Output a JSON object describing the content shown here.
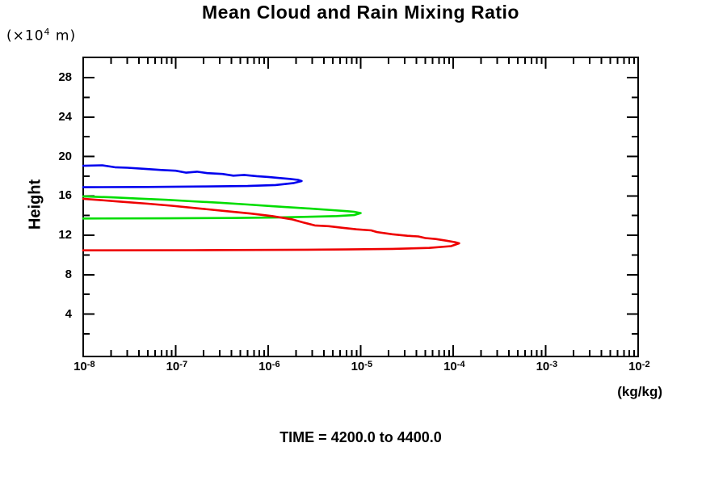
{
  "title": "Mean Cloud and Rain Mixing Ratio",
  "axes": {
    "y_unit": {
      "pre": "(×10",
      "exp": "4",
      "post": " m)"
    },
    "y_label": "Height",
    "x_unit": "(kg/kg)"
  },
  "footer": {
    "text": "TIME = 4200.0 to 4400.0"
  },
  "colors": {
    "axis": "#000000",
    "background": "#ffffff",
    "blue_profile": "#0000ee",
    "green_profile": "#00dd00",
    "red_profile": "#ee0000"
  },
  "chart_data": {
    "type": "line",
    "title": "Mean Cloud and Rain Mixing Ratio",
    "xlabel": "(kg/kg)",
    "ylabel": "Height (x10^4 m)",
    "x_scale": "log",
    "xlim": [
      1e-08,
      0.01
    ],
    "ylim": [
      0,
      30
    ],
    "grid": false,
    "legend": false,
    "annotation": "TIME = 4200.0 to 4400.0",
    "x_ticks": [
      {
        "v": 1e-08,
        "base": "10",
        "exp": "-8"
      },
      {
        "v": 1e-07,
        "base": "10",
        "exp": "-7"
      },
      {
        "v": 1e-06,
        "base": "10",
        "exp": "-6"
      },
      {
        "v": 1e-05,
        "base": "10",
        "exp": "-5"
      },
      {
        "v": 0.0001,
        "base": "10",
        "exp": "-4"
      },
      {
        "v": 0.001,
        "base": "10",
        "exp": "-3"
      },
      {
        "v": 0.01,
        "base": "10",
        "exp": "-2"
      }
    ],
    "y_ticks": [
      4,
      8,
      12,
      16,
      20,
      24,
      28
    ],
    "y_minor_ticks": [
      2,
      6,
      10,
      14,
      18,
      22,
      26
    ],
    "series": [
      {
        "name": "blue-profile",
        "color": "#0000ee",
        "peak_value": 2.3e-06,
        "peak_height": 17.5,
        "points": [
          [
            1e-08,
            19.05
          ],
          [
            1.6e-08,
            19.1
          ],
          [
            2.2e-08,
            18.9
          ],
          [
            3e-08,
            18.85
          ],
          [
            4.5e-08,
            18.75
          ],
          [
            7e-08,
            18.62
          ],
          [
            1e-07,
            18.55
          ],
          [
            1.3e-07,
            18.35
          ],
          [
            1.7e-07,
            18.45
          ],
          [
            2.2e-07,
            18.3
          ],
          [
            3.2e-07,
            18.22
          ],
          [
            4.2e-07,
            18.05
          ],
          [
            5.5e-07,
            18.12
          ],
          [
            7.5e-07,
            18.0
          ],
          [
            1e-06,
            17.92
          ],
          [
            1.35e-06,
            17.8
          ],
          [
            1.7e-06,
            17.72
          ],
          [
            2.1e-06,
            17.62
          ],
          [
            2.3e-06,
            17.5
          ],
          [
            1.9e-06,
            17.3
          ],
          [
            1.2e-06,
            17.1
          ],
          [
            6e-07,
            17.0
          ],
          [
            2e-07,
            16.95
          ],
          [
            5e-08,
            16.9
          ],
          [
            1e-08,
            16.88
          ]
        ]
      },
      {
        "name": "green-profile",
        "color": "#00dd00",
        "peak_value": 1e-05,
        "peak_height": 14.25,
        "points": [
          [
            1e-08,
            15.95
          ],
          [
            2e-08,
            15.85
          ],
          [
            4e-08,
            15.72
          ],
          [
            8e-08,
            15.6
          ],
          [
            1.5e-07,
            15.45
          ],
          [
            3e-07,
            15.3
          ],
          [
            6e-07,
            15.12
          ],
          [
            1.1e-06,
            14.95
          ],
          [
            2e-06,
            14.8
          ],
          [
            3.2e-06,
            14.68
          ],
          [
            5e-06,
            14.55
          ],
          [
            7e-06,
            14.45
          ],
          [
            8.5e-06,
            14.38
          ],
          [
            1e-05,
            14.25
          ],
          [
            8.5e-06,
            14.05
          ],
          [
            5.5e-06,
            13.95
          ],
          [
            3e-06,
            13.88
          ],
          [
            1.2e-06,
            13.8
          ],
          [
            4e-07,
            13.75
          ],
          [
            8e-08,
            13.72
          ],
          [
            1e-08,
            13.7
          ]
        ]
      },
      {
        "name": "red-profile",
        "color": "#ee0000",
        "peak_value": 0.000116,
        "peak_height": 11.2,
        "points": [
          [
            1e-08,
            15.7
          ],
          [
            1.4e-08,
            15.6
          ],
          [
            2.5e-08,
            15.42
          ],
          [
            5e-08,
            15.2
          ],
          [
            9e-08,
            15.0
          ],
          [
            1.8e-07,
            14.72
          ],
          [
            3.5e-07,
            14.45
          ],
          [
            6.5e-07,
            14.2
          ],
          [
            1.1e-06,
            13.95
          ],
          [
            1.8e-06,
            13.62
          ],
          [
            2.4e-06,
            13.3
          ],
          [
            3.2e-06,
            13.0
          ],
          [
            4.5e-06,
            12.92
          ],
          [
            6.5e-06,
            12.75
          ],
          [
            9e-06,
            12.6
          ],
          [
            1.3e-05,
            12.5
          ],
          [
            1.5e-05,
            12.32
          ],
          [
            2.2e-05,
            12.1
          ],
          [
            3.2e-05,
            11.95
          ],
          [
            4.2e-05,
            11.88
          ],
          [
            5e-05,
            11.72
          ],
          [
            6.5e-05,
            11.62
          ],
          [
            8.5e-05,
            11.45
          ],
          [
            0.000105,
            11.3
          ],
          [
            0.000116,
            11.18
          ],
          [
            9.5e-05,
            10.9
          ],
          [
            5.5e-05,
            10.72
          ],
          [
            2.2e-05,
            10.62
          ],
          [
            7e-06,
            10.56
          ],
          [
            1.5e-06,
            10.52
          ],
          [
            1.5e-07,
            10.49
          ],
          [
            1e-08,
            10.47
          ]
        ]
      }
    ]
  }
}
